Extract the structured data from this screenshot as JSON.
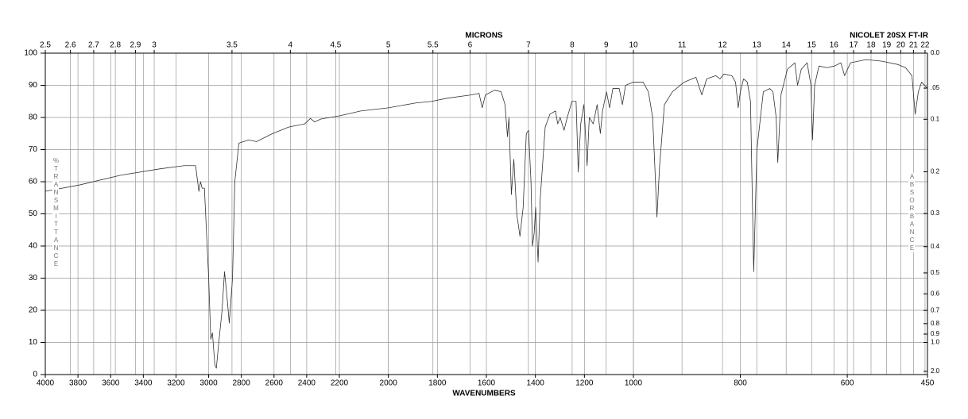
{
  "chart_data": {
    "type": "line",
    "title": "NICOLET 20SX FT-IR",
    "x_label": "WAVENUMBERS",
    "x2_label": "MICRONS",
    "y_label": "%TRANSMITTANCE",
    "y2_label": "ABSORBANCE",
    "xlim": [
      4000,
      450
    ],
    "xscale": "piecewise",
    "xbreaks": [
      4000,
      2200,
      1000,
      450
    ],
    "xticks": [
      4000,
      3800,
      3600,
      3400,
      3200,
      3000,
      2800,
      2600,
      2400,
      2200,
      2000,
      1800,
      1600,
      1400,
      1200,
      1000,
      800,
      600,
      450
    ],
    "x2ticks": [
      2.5,
      2.6,
      2.7,
      2.8,
      2.9,
      3,
      3.5,
      4,
      4.5,
      5,
      5.5,
      6,
      7,
      8,
      9,
      10,
      11,
      12,
      13,
      14,
      15,
      16,
      17,
      18,
      19,
      20,
      21,
      22
    ],
    "ylim": [
      0,
      100
    ],
    "yticks": [
      0,
      10,
      20,
      30,
      40,
      50,
      60,
      70,
      80,
      90,
      100
    ],
    "y2ticks": [
      {
        "value": 0,
        "label": "0.0"
      },
      {
        "value": 0.05,
        "label": ".05"
      },
      0.1,
      0.2,
      0.3,
      0.4,
      0.5,
      0.6,
      0.7,
      0.8,
      0.9,
      {
        "value": 1,
        "label": "1.0"
      },
      {
        "value": 2,
        "label": "2.0"
      }
    ],
    "grid": true,
    "color": "#333333",
    "x": [
      4000,
      3790,
      3540,
      3300,
      3150,
      3080,
      3070,
      3060,
      3050,
      3040,
      3026,
      3000,
      2987,
      2977,
      2962,
      2953,
      2938,
      2918,
      2903,
      2889,
      2874,
      2854,
      2840,
      2815,
      2756,
      2707,
      2608,
      2510,
      2412,
      2377,
      2352,
      2313,
      2200,
      2113,
      2000,
      1888,
      1823,
      1759,
      1662,
      1630,
      1617,
      1604,
      1566,
      1540,
      1524,
      1514,
      1508,
      1498,
      1488,
      1476,
      1463,
      1450,
      1437,
      1428,
      1418,
      1412,
      1405,
      1399,
      1389,
      1380,
      1360,
      1341,
      1318,
      1309,
      1299,
      1283,
      1270,
      1251,
      1234,
      1225,
      1215,
      1202,
      1189,
      1180,
      1164,
      1148,
      1135,
      1126,
      1110,
      1097,
      1084,
      1058,
      1045,
      1032,
      1000,
      982,
      972,
      964,
      960,
      956,
      951,
      942,
      927,
      905,
      883,
      872,
      863,
      846,
      838,
      831,
      816,
      809,
      804,
      800,
      794,
      787,
      781,
      775,
      769,
      757,
      745,
      739,
      733,
      730,
      724,
      712,
      698,
      693,
      686,
      675,
      668,
      665,
      661,
      653,
      638,
      624,
      612,
      605,
      594,
      565,
      535,
      506,
      491,
      479,
      473,
      467,
      461,
      450
    ],
    "values": [
      57,
      59,
      62,
      64,
      65,
      65,
      61,
      57,
      60,
      58,
      58,
      30,
      11,
      13,
      3,
      2,
      10,
      20,
      32,
      25,
      16,
      30,
      60,
      72,
      73,
      72.5,
      75,
      77,
      78,
      79.7,
      78.6,
      79.5,
      80.5,
      82,
      83,
      84.5,
      85,
      86,
      87,
      87.5,
      83,
      87,
      88.5,
      88,
      84,
      74,
      80,
      56,
      67,
      50,
      43,
      52,
      75,
      76,
      60,
      40,
      44,
      52,
      35,
      55,
      77,
      81,
      82,
      78,
      80,
      76,
      80,
      85,
      85,
      63,
      78,
      84,
      65,
      80,
      78,
      84,
      75,
      82,
      88,
      83,
      89,
      89,
      84,
      90,
      91,
      91,
      88,
      80,
      65,
      49,
      65,
      84,
      88,
      91,
      92.5,
      87,
      92,
      93,
      92,
      93.5,
      93,
      91,
      83,
      88,
      92,
      91,
      85,
      32,
      70,
      88,
      89,
      88,
      80,
      66,
      87,
      95,
      97,
      90,
      95,
      97,
      90,
      73,
      90,
      96,
      95.5,
      96,
      97,
      93,
      97,
      98,
      97.5,
      96.5,
      95.5,
      93,
      81,
      88,
      91,
      89
    ]
  }
}
